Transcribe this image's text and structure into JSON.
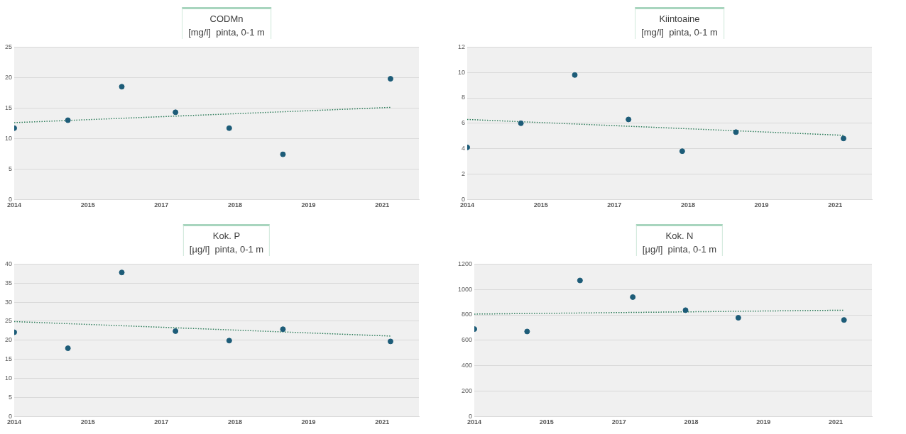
{
  "chart_data": [
    {
      "type": "scatter",
      "title": "CODMn",
      "subtitle": "[mg/l]  pinta, 0-1 m",
      "x": [
        "2014-06-01",
        "2015-06-01",
        "2016-06-01",
        "2017-06-01",
        "2018-06-01",
        "2019-06-01",
        "2021-06-01"
      ],
      "xlim": [
        "2014-06-01",
        "2021-12-11"
      ],
      "xticks": [
        {
          "value": "2014-06-01",
          "label": "2014"
        },
        {
          "value": "2015-10-14",
          "label": "2015"
        },
        {
          "value": "2017-02-25",
          "label": "2017"
        },
        {
          "value": "2018-07-10",
          "label": "2018"
        },
        {
          "value": "2019-11-22",
          "label": "2019"
        },
        {
          "value": "2021-04-05",
          "label": "2021"
        }
      ],
      "ylim": [
        0,
        25
      ],
      "yticks": [
        0,
        5,
        10,
        15,
        20,
        25
      ],
      "grid": "y",
      "legend": false,
      "marker": "circle",
      "series": [
        {
          "color": "#1d5c78",
          "values": [
            11.7,
            13.0,
            18.5,
            14.3,
            11.7,
            7.4,
            19.8
          ]
        },
        {
          "type": "line",
          "color": "#2e7d5b",
          "line_style": "dotted",
          "marker": "none",
          "x": [
            "2014-06-01",
            "2021-06-01"
          ],
          "values": [
            12.6,
            15.1
          ]
        }
      ]
    },
    {
      "type": "scatter",
      "title": "Kiintoaine",
      "subtitle": "[mg/l]  pinta, 0-1 m",
      "x": [
        "2014-06-01",
        "2015-06-01",
        "2016-06-01",
        "2017-06-01",
        "2018-06-01",
        "2019-06-01",
        "2021-06-01"
      ],
      "xlim": [
        "2014-06-01",
        "2021-12-11"
      ],
      "xticks": [
        {
          "value": "2014-06-01",
          "label": "2014"
        },
        {
          "value": "2015-10-14",
          "label": "2015"
        },
        {
          "value": "2017-02-25",
          "label": "2017"
        },
        {
          "value": "2018-07-10",
          "label": "2018"
        },
        {
          "value": "2019-11-22",
          "label": "2019"
        },
        {
          "value": "2021-04-05",
          "label": "2021"
        }
      ],
      "ylim": [
        0,
        12
      ],
      "yticks": [
        0,
        2,
        4,
        6,
        8,
        10,
        12
      ],
      "grid": "y",
      "legend": false,
      "marker": "circle",
      "series": [
        {
          "color": "#1d5c78",
          "values": [
            4.1,
            6.0,
            9.8,
            6.3,
            3.8,
            5.3,
            4.8
          ]
        },
        {
          "type": "line",
          "color": "#2e7d5b",
          "line_style": "dotted",
          "marker": "none",
          "x": [
            "2014-06-01",
            "2021-06-01"
          ],
          "values": [
            6.3,
            5.05
          ]
        }
      ]
    },
    {
      "type": "scatter",
      "title": "Kok. P",
      "subtitle": "[µg/l]  pinta, 0-1 m",
      "x": [
        "2014-06-01",
        "2015-06-01",
        "2016-06-01",
        "2017-06-01",
        "2018-06-01",
        "2019-06-01",
        "2021-06-01"
      ],
      "xlim": [
        "2014-06-01",
        "2021-12-11"
      ],
      "xticks": [
        {
          "value": "2014-06-01",
          "label": "2014"
        },
        {
          "value": "2015-10-14",
          "label": "2015"
        },
        {
          "value": "2017-02-25",
          "label": "2017"
        },
        {
          "value": "2018-07-10",
          "label": "2018"
        },
        {
          "value": "2019-11-22",
          "label": "2019"
        },
        {
          "value": "2021-04-05",
          "label": "2021"
        }
      ],
      "ylim": [
        0,
        40
      ],
      "yticks": [
        0,
        5,
        10,
        15,
        20,
        25,
        30,
        35,
        40
      ],
      "grid": "y",
      "legend": false,
      "marker": "circle",
      "series": [
        {
          "color": "#1d5c78",
          "values": [
            22.1,
            17.9,
            37.8,
            22.4,
            19.9,
            22.9,
            19.7
          ]
        },
        {
          "type": "line",
          "color": "#2e7d5b",
          "line_style": "dotted",
          "marker": "none",
          "x": [
            "2014-06-01",
            "2021-06-01"
          ],
          "values": [
            24.9,
            21.1
          ]
        }
      ]
    },
    {
      "type": "scatter",
      "title": "Kok. N",
      "subtitle": "[µg/l]  pinta, 0-1 m",
      "x": [
        "2014-06-01",
        "2015-06-01",
        "2016-06-01",
        "2017-06-01",
        "2018-06-01",
        "2019-06-01",
        "2021-06-01"
      ],
      "xlim": [
        "2014-06-01",
        "2021-12-11"
      ],
      "xticks": [
        {
          "value": "2014-06-01",
          "label": "2014"
        },
        {
          "value": "2015-10-14",
          "label": "2015"
        },
        {
          "value": "2017-02-25",
          "label": "2017"
        },
        {
          "value": "2018-07-10",
          "label": "2018"
        },
        {
          "value": "2019-11-22",
          "label": "2019"
        },
        {
          "value": "2021-04-05",
          "label": "2021"
        }
      ],
      "ylim": [
        0,
        1200
      ],
      "yticks": [
        0,
        200,
        400,
        600,
        800,
        1000,
        1200
      ],
      "grid": "y",
      "legend": false,
      "marker": "circle",
      "series": [
        {
          "color": "#1d5c78",
          "values": [
            688,
            669,
            1071,
            940,
            837,
            777,
            760
          ]
        },
        {
          "type": "line",
          "color": "#2e7d5b",
          "line_style": "dotted",
          "marker": "none",
          "x": [
            "2014-06-01",
            "2021-06-01"
          ],
          "values": [
            806,
            837
          ]
        }
      ]
    }
  ]
}
